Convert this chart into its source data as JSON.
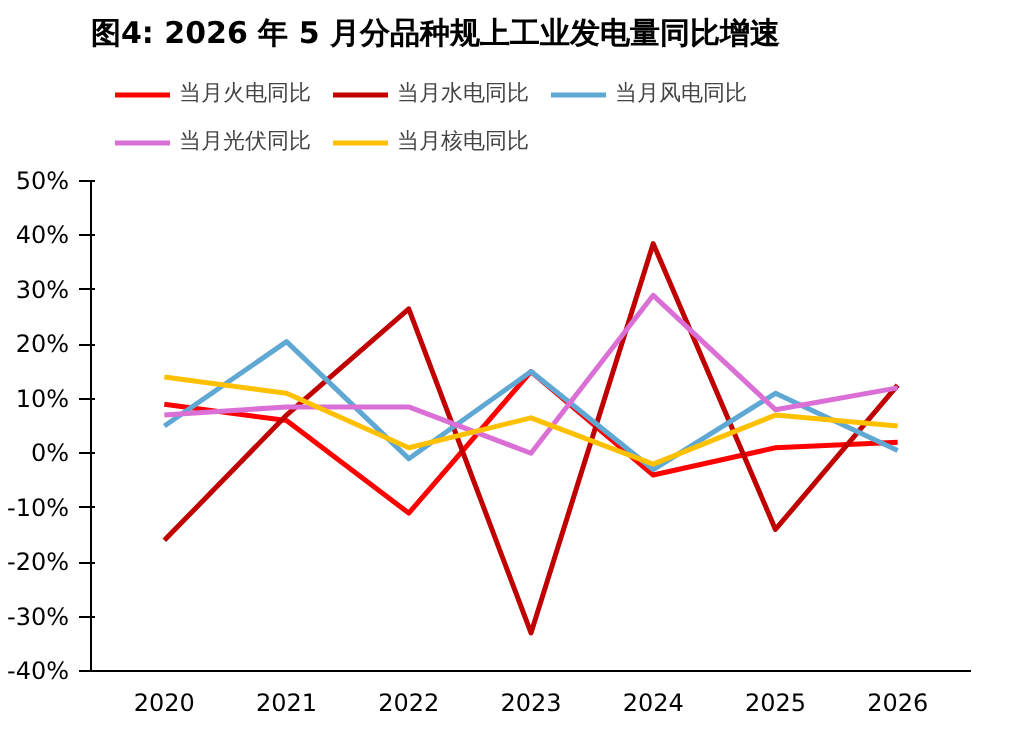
{
  "chart_data": {
    "type": "line",
    "title": "图4: 2026 年 5 月分品种规上工业发电量同比增速",
    "categories": [
      "2020",
      "2021",
      "2022",
      "2023",
      "2024",
      "2025",
      "2026"
    ],
    "series": [
      {
        "name": "当月火电同比",
        "color": "#ff0000",
        "values": [
          9,
          6,
          -11,
          15,
          -4,
          1,
          2
        ]
      },
      {
        "name": "当月水电同比",
        "color": "#c00000",
        "values": [
          -16,
          7,
          26.5,
          -33,
          38.5,
          -14,
          12.5
        ]
      },
      {
        "name": "当月风电同比",
        "color": "#5fa8d3",
        "values": [
          5,
          20.5,
          -1,
          15,
          -3,
          11,
          0.5
        ]
      },
      {
        "name": "当月光伏同比",
        "color": "#da70d6",
        "values": [
          7,
          8.5,
          8.5,
          0,
          29,
          8,
          12
        ]
      },
      {
        "name": "当月核电同比",
        "color": "#ffc000",
        "values": [
          14,
          11,
          1,
          6.5,
          -2,
          7,
          5
        ]
      }
    ],
    "ylim": [
      -40,
      50
    ],
    "yticks": [
      {
        "value": -40,
        "label": "-40%"
      },
      {
        "value": -30,
        "label": "-30%"
      },
      {
        "value": -20,
        "label": "-20%"
      },
      {
        "value": -10,
        "label": "-10%"
      },
      {
        "value": 0,
        "label": "0%"
      },
      {
        "value": 10,
        "label": "10%"
      },
      {
        "value": 20,
        "label": "20%"
      },
      {
        "value": 30,
        "label": "30%"
      },
      {
        "value": 40,
        "label": "40%"
      },
      {
        "value": 50,
        "label": "50%"
      }
    ],
    "legend": "top",
    "grid": false
  }
}
